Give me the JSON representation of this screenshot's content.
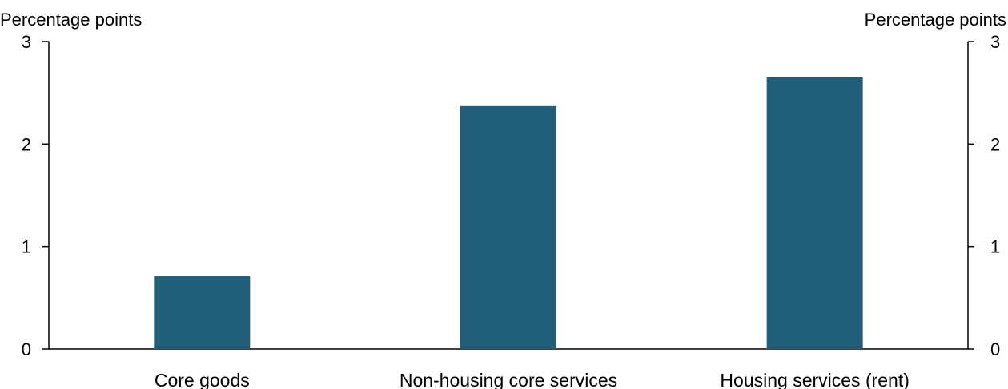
{
  "chart_data": {
    "type": "bar",
    "categories": [
      "Core goods",
      "Non-housing core services",
      "Housing services (rent)"
    ],
    "values": [
      0.71,
      2.37,
      2.65
    ],
    "ylabel_left": "Percentage points",
    "ylabel_right": "Percentage points",
    "ylim": [
      0,
      3
    ],
    "yticks": [
      "0",
      "1",
      "2",
      "3"
    ],
    "grid": false,
    "bar_color": "#205e79"
  }
}
